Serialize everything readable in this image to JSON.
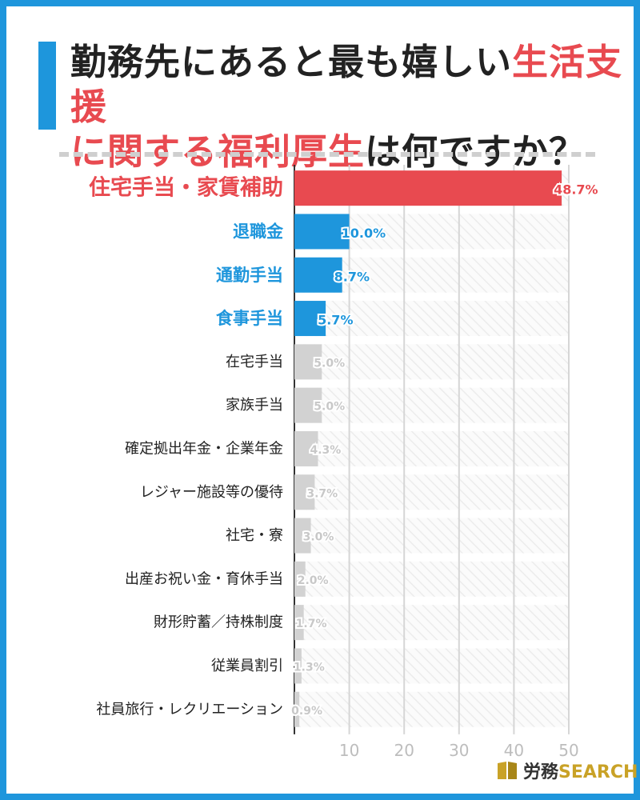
{
  "title": {
    "line1_black": "勤務先にあると最も嬉しい",
    "line1_red": "生活支援",
    "line2_red": "に関する福利厚生",
    "line2_black": "は何ですか？"
  },
  "colors": {
    "red": "#e84a50",
    "blue": "#1e96dc",
    "gray": "#d2d2d2",
    "frame": "#1e96dc"
  },
  "logo": {
    "text": "労務",
    "search": "SEARCH"
  },
  "chart_data": {
    "type": "bar",
    "orientation": "horizontal",
    "categories": [
      "住宅手当・家賃補助",
      "退職金",
      "通勤手当",
      "食事手当",
      "在宅手当",
      "家族手当",
      "確定拠出年金・企業年金",
      "レジャー施設等の優待",
      "社宅・寮",
      "出産お祝い金・育休手当",
      "財形貯蓄／持株制度",
      "従業員割引",
      "社員旅行・レクリエーション"
    ],
    "values": [
      48.7,
      10.0,
      8.7,
      5.7,
      5.0,
      5.0,
      4.3,
      3.7,
      3.0,
      2.0,
      1.7,
      1.3,
      0.9
    ],
    "value_labels": [
      "48.7%",
      "10.0%",
      "8.7%",
      "5.7%",
      "5.0%",
      "5.0%",
      "4.3%",
      "3.7%",
      "3.0%",
      "2.0%",
      "1.7%",
      "1.3%",
      "0.9%"
    ],
    "highlight": [
      "red",
      "blue",
      "blue",
      "blue",
      "gray",
      "gray",
      "gray",
      "gray",
      "gray",
      "gray",
      "gray",
      "gray",
      "gray"
    ],
    "xlim": [
      0,
      50
    ],
    "xticks": [
      10,
      20,
      30,
      40,
      50
    ],
    "grid": true
  }
}
